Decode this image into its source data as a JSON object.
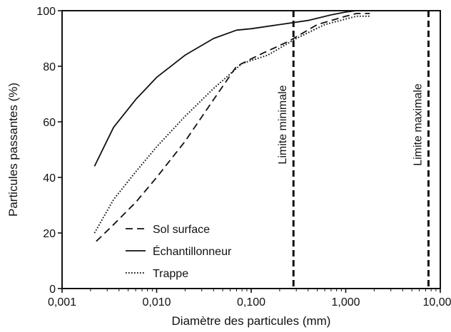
{
  "chart_data": {
    "type": "line",
    "title": "",
    "xlabel": "Diamètre des particules (mm)",
    "ylabel": "Particules passantes (%)",
    "x_scale": "log",
    "xlim": [
      0.001,
      10
    ],
    "ylim": [
      0,
      100
    ],
    "grid": false,
    "legend_position": "bottom-left",
    "x_ticks": [
      {
        "value": 0.001,
        "label": "0,001"
      },
      {
        "value": 0.01,
        "label": "0,010"
      },
      {
        "value": 0.1,
        "label": "0,100"
      },
      {
        "value": 1,
        "label": "1,000"
      },
      {
        "value": 10,
        "label": "10,000"
      }
    ],
    "y_ticks": [
      {
        "value": 0,
        "label": "0"
      },
      {
        "value": 20,
        "label": "20"
      },
      {
        "value": 40,
        "label": "40"
      },
      {
        "value": 60,
        "label": "60"
      },
      {
        "value": 80,
        "label": "80"
      },
      {
        "value": 100,
        "label": "100"
      }
    ],
    "series": [
      {
        "name": "Sol surface",
        "dash": "dashed",
        "color": "#111111",
        "points": [
          [
            0.0023,
            17
          ],
          [
            0.0035,
            23
          ],
          [
            0.006,
            31
          ],
          [
            0.01,
            40
          ],
          [
            0.02,
            53
          ],
          [
            0.04,
            68
          ],
          [
            0.07,
            80
          ],
          [
            0.12,
            84
          ],
          [
            0.25,
            89
          ],
          [
            0.5,
            95
          ],
          [
            1.0,
            98
          ],
          [
            1.3,
            99
          ],
          [
            1.8,
            99
          ]
        ]
      },
      {
        "name": "Échantillonneur",
        "dash": "solid",
        "color": "#111111",
        "points": [
          [
            0.0022,
            44
          ],
          [
            0.0035,
            58
          ],
          [
            0.006,
            68
          ],
          [
            0.01,
            76
          ],
          [
            0.02,
            84
          ],
          [
            0.04,
            90
          ],
          [
            0.07,
            93
          ],
          [
            0.1,
            93.5
          ],
          [
            0.2,
            95
          ],
          [
            0.4,
            96.5
          ],
          [
            0.7,
            98.5
          ],
          [
            1.0,
            99.5
          ],
          [
            1.3,
            100
          ],
          [
            1.8,
            100
          ]
        ]
      },
      {
        "name": "Trappe",
        "dash": "dotted",
        "color": "#111111",
        "points": [
          [
            0.0022,
            20
          ],
          [
            0.0035,
            32
          ],
          [
            0.006,
            42
          ],
          [
            0.01,
            51
          ],
          [
            0.02,
            62
          ],
          [
            0.04,
            72
          ],
          [
            0.08,
            81
          ],
          [
            0.15,
            84
          ],
          [
            0.3,
            90
          ],
          [
            0.6,
            95
          ],
          [
            1.0,
            97
          ],
          [
            1.3,
            98
          ],
          [
            1.8,
            98
          ]
        ]
      }
    ],
    "vertical_lines": [
      {
        "x": 0.28,
        "label": "Limite minimale"
      },
      {
        "x": 7.5,
        "label": "Limite maximale"
      }
    ]
  }
}
